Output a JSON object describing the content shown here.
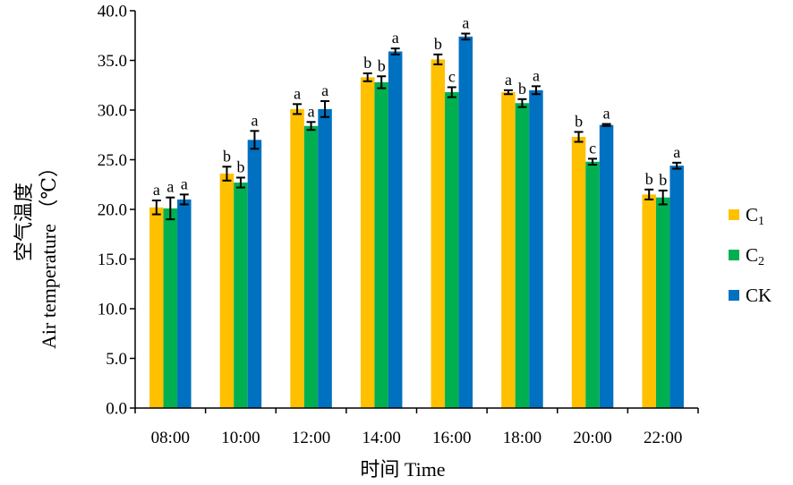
{
  "chart_data": {
    "type": "bar",
    "categories": [
      "08:00",
      "10:00",
      "12:00",
      "14:00",
      "16:00",
      "18:00",
      "20:00",
      "22:00"
    ],
    "ylim": [
      0,
      40
    ],
    "yticks": [
      "0.0",
      "5.0",
      "10.0",
      "15.0",
      "20.0",
      "25.0",
      "30.0",
      "35.0",
      "40.0"
    ],
    "ylabel_cn": "空气温度",
    "ylabel_en": "Air temperature",
    "ylabel_unit": "（℃）",
    "xlabel": "时间 Time",
    "grid": false,
    "legend_position": "right",
    "series": [
      {
        "name": "C1",
        "name_base": "C",
        "name_sub": "1",
        "color": "#FFC000",
        "values": [
          20.2,
          23.6,
          30.1,
          33.3,
          35.1,
          31.8,
          27.3,
          21.5
        ],
        "errors": [
          0.7,
          0.7,
          0.5,
          0.4,
          0.5,
          0.2,
          0.5,
          0.5
        ],
        "labels": [
          "a",
          "b",
          "a",
          "b",
          "b",
          "a",
          "b",
          "b"
        ]
      },
      {
        "name": "C2",
        "name_base": "C",
        "name_sub": "2",
        "color": "#00B050",
        "values": [
          20.1,
          22.7,
          28.4,
          32.8,
          31.8,
          30.7,
          24.8,
          21.2
        ],
        "errors": [
          1.1,
          0.5,
          0.4,
          0.6,
          0.5,
          0.4,
          0.3,
          0.7
        ],
        "labels": [
          "a",
          "b",
          "a",
          "b",
          "c",
          "b",
          "c",
          "b"
        ]
      },
      {
        "name": "CK",
        "name_base": "CK",
        "name_sub": "",
        "color": "#0070C0",
        "values": [
          21.0,
          27.0,
          30.1,
          35.9,
          37.4,
          32.0,
          28.5,
          24.4
        ],
        "errors": [
          0.5,
          0.9,
          0.8,
          0.3,
          0.3,
          0.4,
          0.1,
          0.3
        ],
        "labels": [
          "a",
          "a",
          "a",
          "a",
          "a",
          "a",
          "a",
          "a"
        ]
      }
    ]
  }
}
